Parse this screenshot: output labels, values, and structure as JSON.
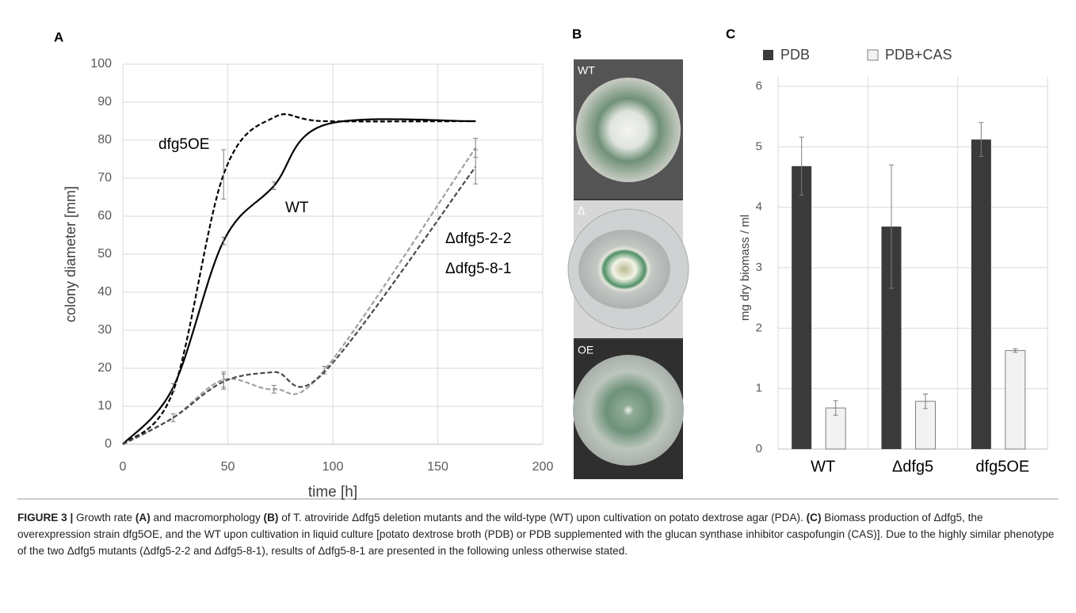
{
  "panel_labels": [
    "A",
    "B",
    "C"
  ],
  "photo_labels": [
    "WT",
    "Δ",
    "OE"
  ],
  "caption": [
    "FIGURE 3 |",
    " Growth rate ",
    "(A)",
    " and macromorphology ",
    "(B)",
    " of T. atroviride Δdfg5 deletion mutants and the wild-type (WT) upon cultivation on potato dextrose agar (PDA). ",
    "(C)",
    " Biomass production of Δdfg5, the overexpression strain dfg5OE, and the WT upon cultivation in liquid culture [potato dextrose broth (PDB) or PDB supplemented with the glucan synthase inhibitor caspofungin (CAS)]. Due to the highly similar phenotype of the two Δdfg5 mutants (Δdfg5-2-2 and Δdfg5-8-1), results of Δdfg5-8-1 are presented in the following unless otherwise stated."
  ],
  "chart_data": [
    {
      "type": "line",
      "x_label": "time [h]",
      "y_label": "colony diameter [mm]",
      "x": [
        0,
        24,
        48,
        72,
        96,
        168
      ],
      "xlim": [
        0,
        200
      ],
      "xticks": [
        0,
        50,
        100,
        150,
        200
      ],
      "ylim": [
        0,
        100
      ],
      "yticks": [
        0,
        10,
        20,
        30,
        40,
        50,
        60,
        70,
        80,
        90,
        100
      ],
      "grid": true,
      "series": [
        {
          "name": "dfg5OE",
          "color": "#000000",
          "dashed": true,
          "values": [
            0,
            14,
            71,
            86,
            85,
            85
          ],
          "errors": [
            null,
            null,
            6.5,
            null,
            null,
            null
          ]
        },
        {
          "name": "WT",
          "color": "#000000",
          "dashed": false,
          "values": [
            0,
            15,
            53.5,
            68,
            84,
            85
          ],
          "errors": [
            null,
            1,
            1,
            1,
            null,
            null
          ]
        },
        {
          "name": "Δdfg5-2-2",
          "color": "#a0a0a0",
          "dashed": true,
          "values": [
            0,
            7,
            17,
            14.5,
            19.5,
            78
          ],
          "errors": [
            null,
            1,
            2,
            1,
            1,
            2.5
          ]
        },
        {
          "name": "Δdfg5-8-1",
          "color": "#4a4a4a",
          "dashed": true,
          "values": [
            0,
            7,
            16.5,
            19,
            19,
            73
          ],
          "errors": [
            null,
            null,
            2,
            null,
            null,
            4.5
          ]
        }
      ]
    },
    {
      "type": "bar",
      "y_label": "mg dry biomass / ml",
      "categories": [
        "WT",
        "Δdfg5",
        "dfg5OE"
      ],
      "ylim": [
        0,
        6
      ],
      "yticks": [
        0,
        1,
        2,
        3,
        4,
        5,
        6
      ],
      "grid": true,
      "legend": "top",
      "series": [
        {
          "name": "PDB",
          "color": "#3a3a3a",
          "values": [
            4.68,
            3.68,
            5.12
          ],
          "errors": [
            0.48,
            1.02,
            0.28
          ]
        },
        {
          "name": "PDB+CAS",
          "color": "#f2f2f2",
          "values": [
            0.68,
            0.79,
            1.63
          ],
          "errors": [
            0.12,
            0.12,
            0.03
          ]
        }
      ]
    }
  ]
}
